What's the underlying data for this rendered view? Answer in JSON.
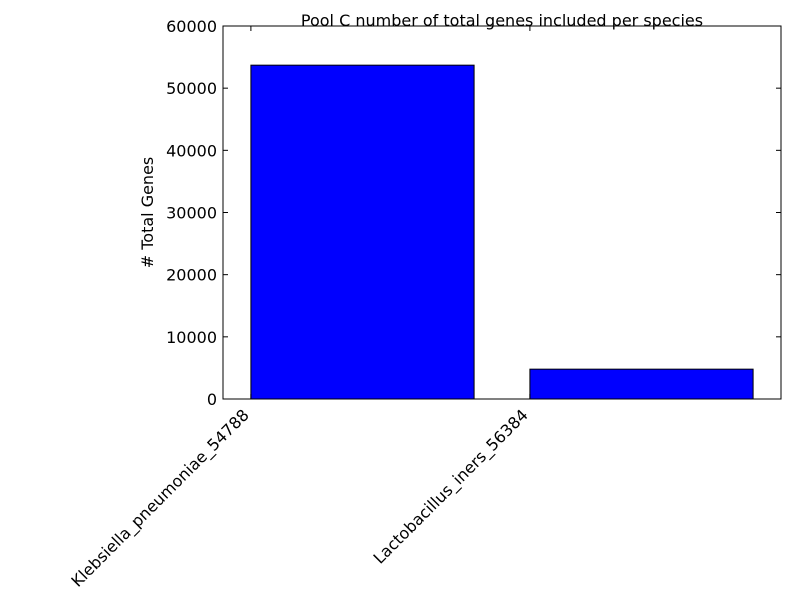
{
  "chart_data": {
    "type": "bar",
    "title": "Pool C number of total genes included per species",
    "xlabel": "",
    "ylabel": "# Total Genes",
    "categories": [
      "Klebsiella_pneumoniae_54788",
      "Lactobacillus_iners_56384"
    ],
    "values": [
      53700,
      4800
    ],
    "ylim": [
      0,
      60000
    ],
    "yticks": [
      0,
      10000,
      20000,
      30000,
      40000,
      50000,
      60000
    ],
    "grid": false,
    "bar_color": "#0000ff",
    "edge_color": "#000000"
  }
}
